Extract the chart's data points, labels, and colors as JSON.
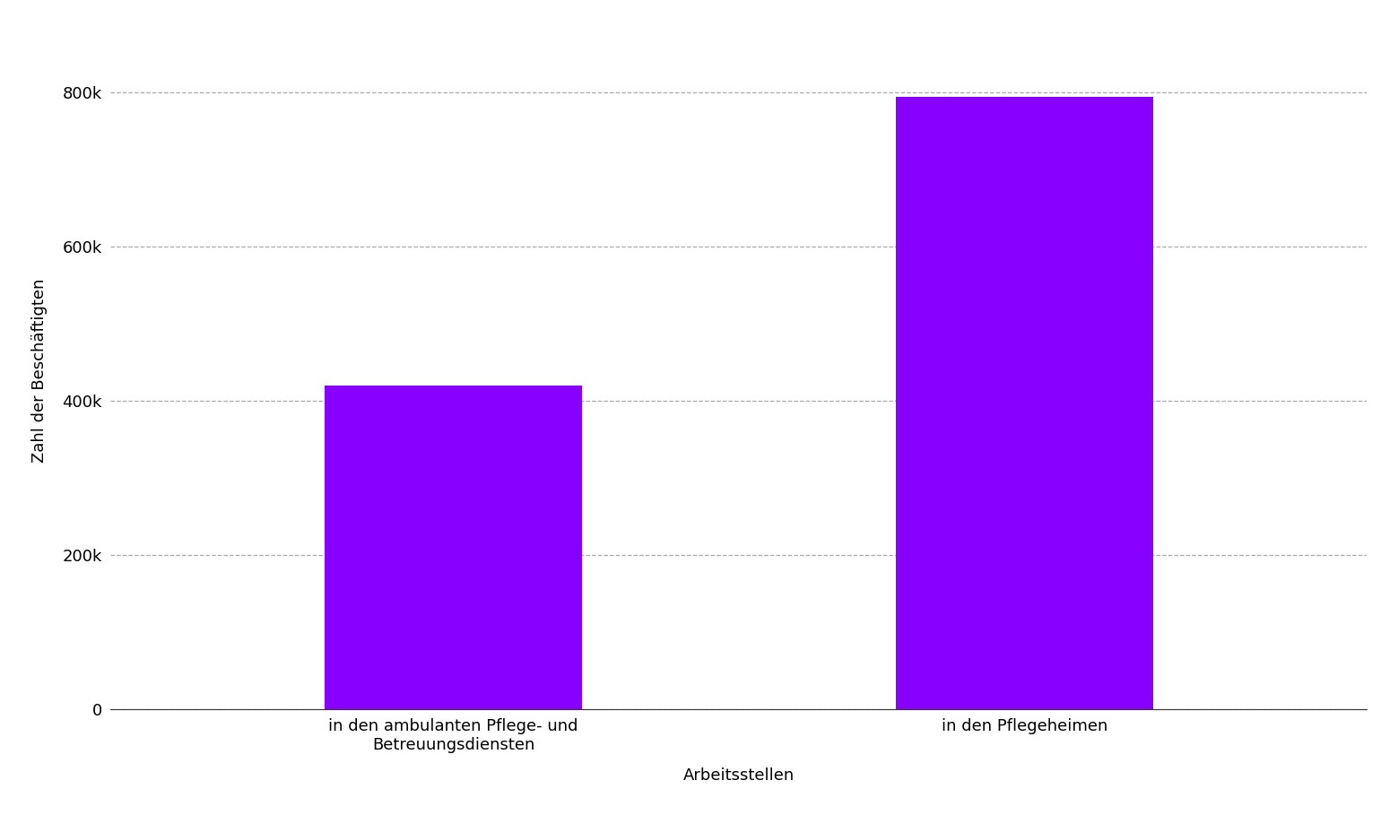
{
  "categories": [
    "in den ambulanten Pflege- und\nBetreuungsdiensten",
    "in den Pflegeheimen"
  ],
  "values": [
    420000,
    795000
  ],
  "bar_color": "#8800ff",
  "xlabel": "Arbeitsstellen",
  "ylabel": "Zahl der Beschäftigten",
  "ylim": [
    0,
    880000
  ],
  "yticks": [
    0,
    200000,
    400000,
    600000,
    800000
  ],
  "ytick_labels": [
    "0",
    "200k",
    "400k",
    "600k",
    "800k"
  ],
  "background_color": "#ffffff",
  "grid_color": "#aaaaaa",
  "bar_width": 0.45,
  "xlabel_fontsize": 13,
  "ylabel_fontsize": 13,
  "tick_fontsize": 13
}
